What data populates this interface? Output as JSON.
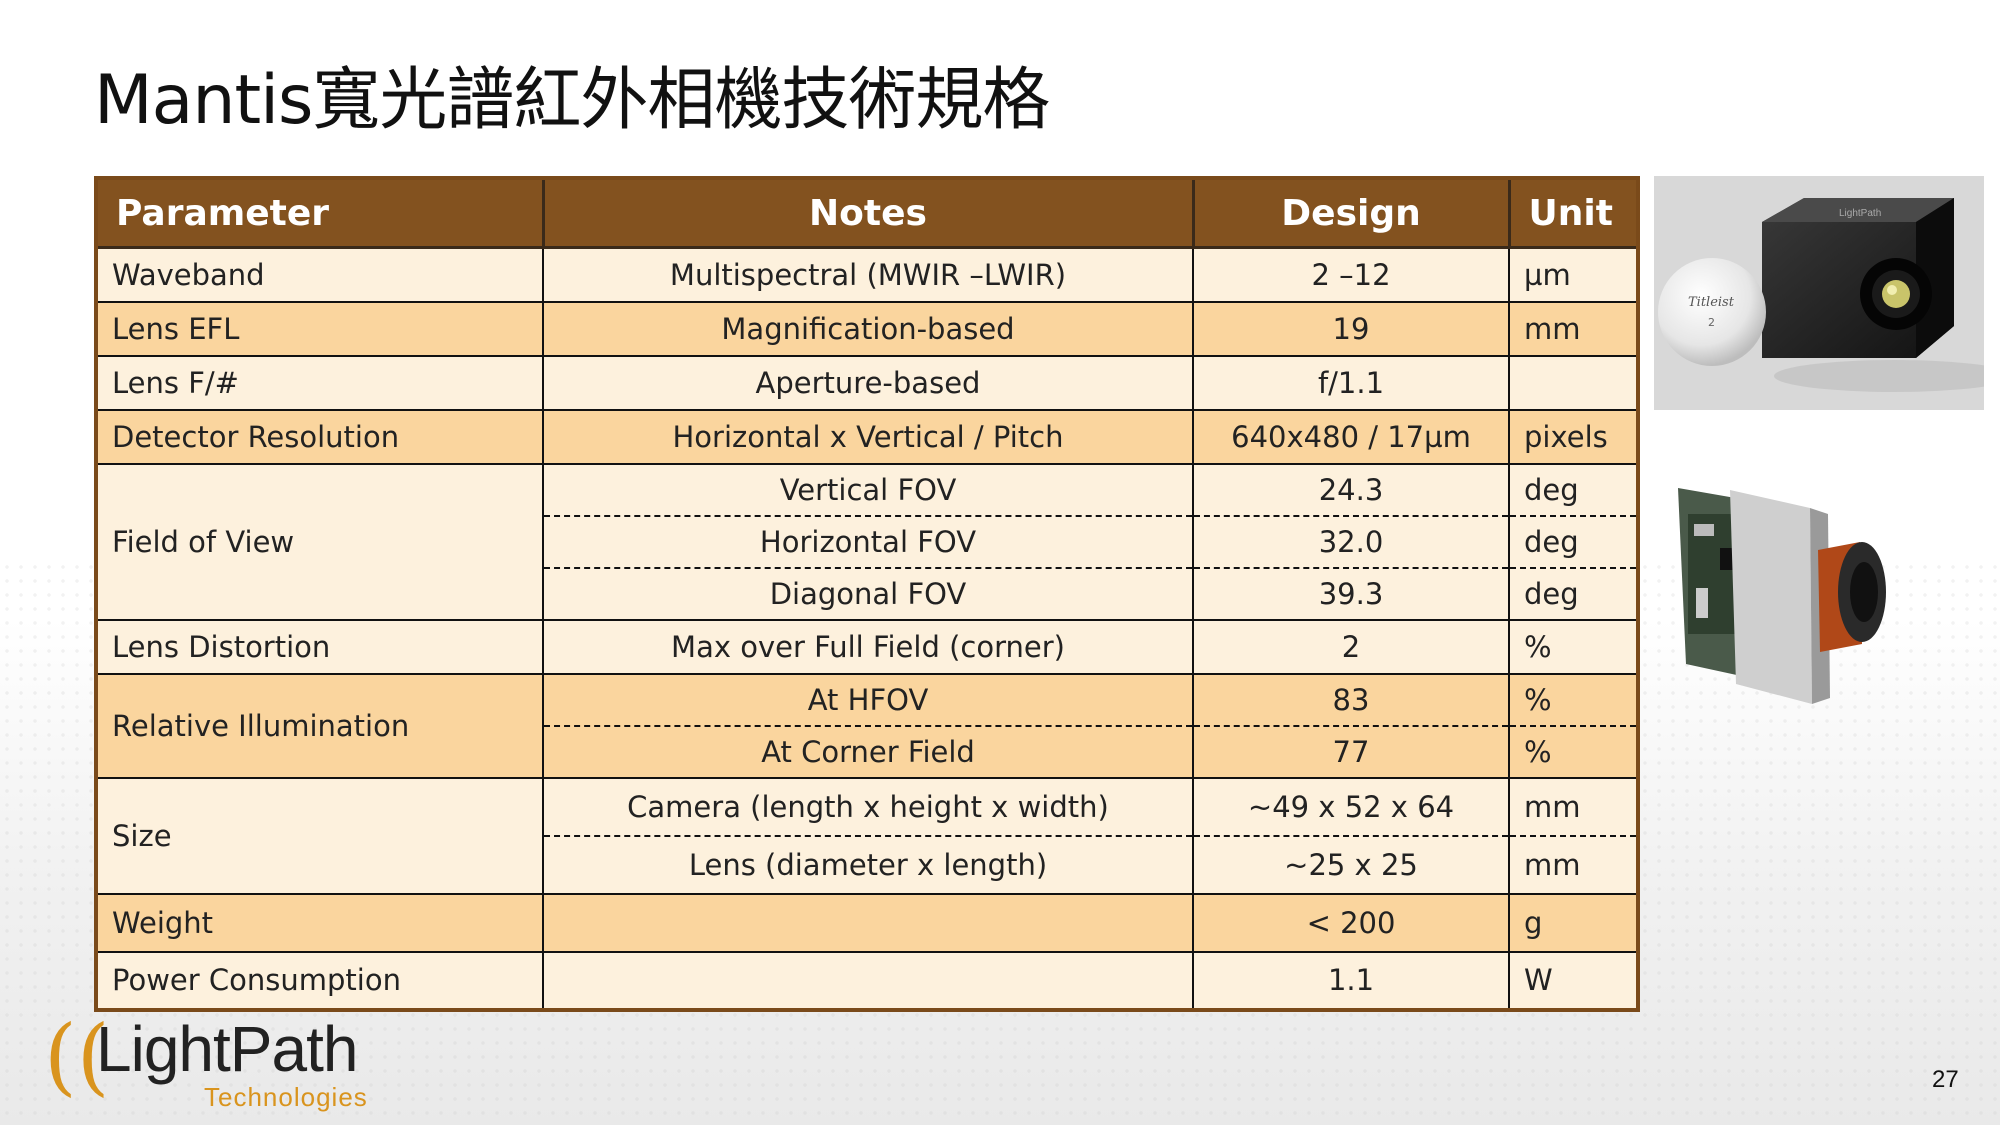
{
  "title": "Mantis寬光譜紅外相機技術規格",
  "table": {
    "headers": {
      "parameter": "Parameter",
      "notes": "Notes",
      "design": "Design",
      "unit": "Unit"
    },
    "rows": {
      "waveband": {
        "parameter": "Waveband",
        "notes": "Multispectral (MWIR –LWIR)",
        "design": "2 –12",
        "unit": "µm"
      },
      "lens_efl": {
        "parameter": "Lens EFL",
        "notes": "Magnification-based",
        "design": "19",
        "unit": "mm"
      },
      "lens_f": {
        "parameter": "Lens F/#",
        "notes": "Aperture-based",
        "design": "f/1.1",
        "unit": ""
      },
      "detector": {
        "parameter": "Detector Resolution",
        "notes": "Horizontal x Vertical / Pitch",
        "design": "640x480 / 17µm",
        "unit": "pixels"
      },
      "fov": {
        "parameter": "Field of View",
        "sub": [
          {
            "notes": "Vertical FOV",
            "design": "24.3",
            "unit": "deg"
          },
          {
            "notes": "Horizontal FOV",
            "design": "32.0",
            "unit": "deg"
          },
          {
            "notes": "Diagonal FOV",
            "design": "39.3",
            "unit": "deg"
          }
        ]
      },
      "distortion": {
        "parameter": "Lens Distortion",
        "notes": "Max over Full Field (corner)",
        "design": "2",
        "unit": "%"
      },
      "illumination": {
        "parameter": "Relative Illumination",
        "sub": [
          {
            "notes": "At HFOV",
            "design": "83",
            "unit": "%"
          },
          {
            "notes": "At Corner Field",
            "design": "77",
            "unit": "%"
          }
        ]
      },
      "size": {
        "parameter": "Size",
        "sub": [
          {
            "notes": "Camera (length x height x width)",
            "design": "~49 x 52 x 64",
            "unit": "mm"
          },
          {
            "notes": "Lens (diameter x length)",
            "design": "~25 x 25",
            "unit": "mm"
          }
        ]
      },
      "weight": {
        "parameter": "Weight",
        "notes": "",
        "design": "< 200",
        "unit": "g"
      },
      "power": {
        "parameter": "Power Consumption",
        "notes": "",
        "design": "1.1",
        "unit": "W"
      }
    }
  },
  "logo": {
    "name": "LightPath",
    "sub": "Technologies",
    "camera_brand": "LightPath",
    "ball_brand": "Titleist",
    "ball_number": "2"
  },
  "page_number": "27"
}
